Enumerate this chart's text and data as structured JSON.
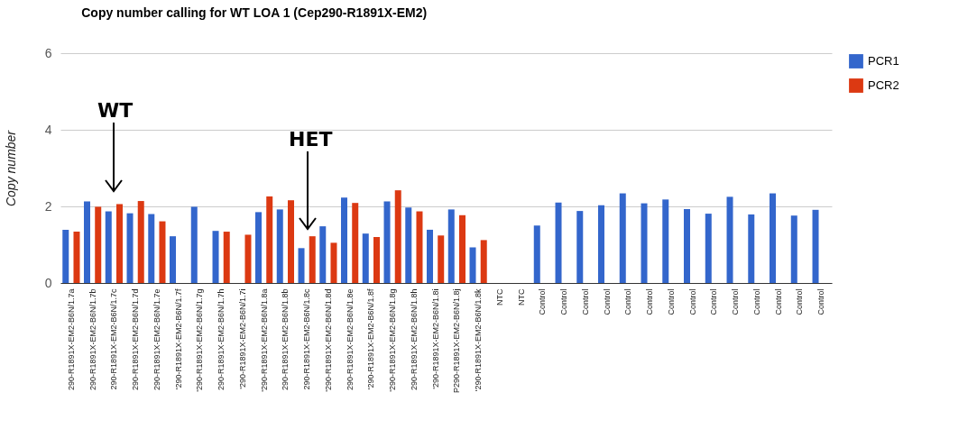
{
  "chart_data": {
    "type": "bar",
    "title": "Copy number calling for WT LOA 1 (Cep290-R1891X-EM2)",
    "ylabel": "Copy number",
    "categories": [
      "290-R1891X-EM2-B6N/1.7a",
      "290-R1891X-EM2-B6N/1.7b",
      "290-R1891X-EM2-B6N/1.7c",
      "290-R1891X-EM2-B6N/1.7d",
      "290-R1891X-EM2-B6N/1.7e",
      "'290-R1891X-EM2-B6N/1.7f",
      "'290-R1891X-EM2-B6N/1.7g",
      "290-R1891X-EM2-B6N/1.7h",
      "'290-R1891X-EM2-B6N/1.7i",
      "'290-R1891X-EM2-B6N/1.8a",
      "290-R1891X-EM2-B6N/1.8b",
      "290-R1891X-EM2-B6N/1.8c",
      "'290-R1891X-EM2-B6N/1.8d",
      "290-R1891X-EM2-B6N/1.8e",
      "'290-R1891X-EM2-B6N/1.8f",
      "'290-R1891X-EM2-B6N/1.8g",
      "290-R1891X-EM2-B6N/1.8h",
      "'290-R1891X-EM2-B6N/1.8i",
      "P290-R1891X-EM2-B6N/1.8j",
      "'290-R1891X-EM2-B6N/1.8k",
      "NTC",
      "NTC",
      "Control",
      "Control",
      "Control",
      "Control",
      "Control",
      "Control",
      "Control",
      "Control",
      "Control",
      "Control",
      "Control",
      "Control",
      "Control",
      "Control"
    ],
    "series": [
      {
        "name": "PCR1",
        "color": "#3366cc",
        "values": [
          1.39,
          2.13,
          1.87,
          1.82,
          1.8,
          1.22,
          1.99,
          1.36,
          null,
          1.85,
          1.92,
          0.91,
          1.48,
          2.23,
          1.29,
          2.13,
          1.97,
          1.39,
          1.92,
          0.93,
          null,
          null,
          1.5,
          2.1,
          1.88,
          2.03,
          2.34,
          2.08,
          2.18,
          1.93,
          1.81,
          2.25,
          1.79,
          2.34,
          1.76,
          1.91
        ]
      },
      {
        "name": "PCR2",
        "color": "#dc3912",
        "values": [
          1.34,
          1.99,
          2.06,
          2.14,
          1.61,
          null,
          null,
          1.34,
          1.26,
          2.26,
          2.16,
          1.22,
          1.05,
          2.09,
          1.2,
          2.42,
          1.87,
          1.24,
          1.77,
          1.12,
          null,
          null,
          null,
          null,
          null,
          null,
          null,
          null,
          null,
          null,
          null,
          null,
          null,
          null,
          null,
          null
        ]
      }
    ],
    "ylim": [
      0,
      6
    ],
    "yticks": [
      0,
      2,
      4,
      6
    ],
    "grid": "y",
    "legend": "top right",
    "annotations": [
      "WT",
      "HET"
    ]
  }
}
